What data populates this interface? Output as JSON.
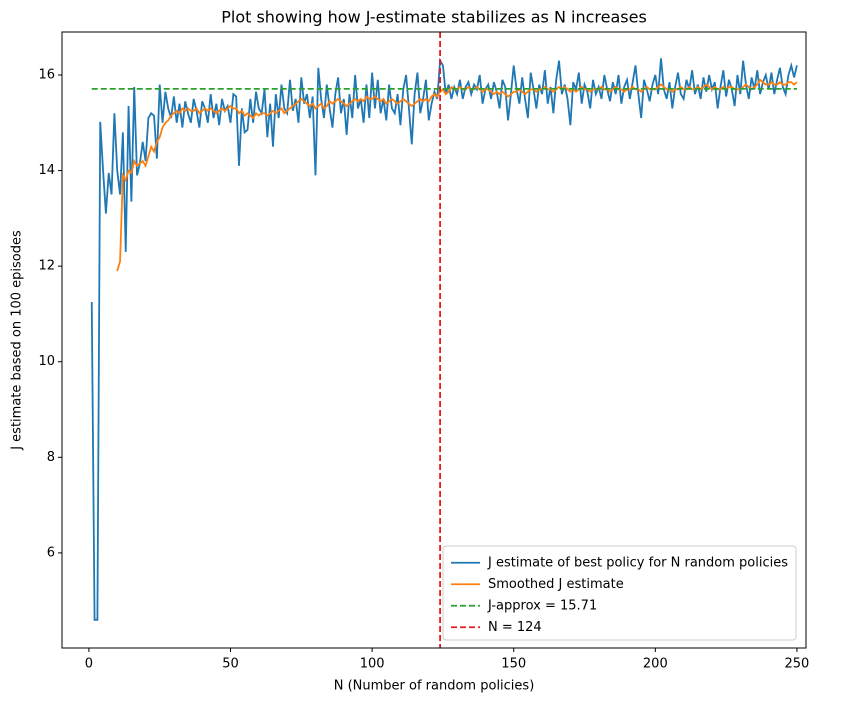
{
  "chart_data": {
    "type": "line",
    "title": "Plot showing how J-estimate stabilizes as N increases",
    "xlabel": "N (Number of random policies)",
    "ylabel": "J estimate based on 100 episodes",
    "x": [
      1,
      2,
      3,
      4,
      5,
      6,
      7,
      8,
      9,
      10,
      11,
      12,
      13,
      14,
      15,
      16,
      17,
      18,
      19,
      20,
      21,
      22,
      23,
      24,
      25,
      26,
      27,
      28,
      29,
      30,
      31,
      32,
      33,
      34,
      35,
      36,
      37,
      38,
      39,
      40,
      41,
      42,
      43,
      44,
      45,
      46,
      47,
      48,
      49,
      50,
      51,
      52,
      53,
      54,
      55,
      56,
      57,
      58,
      59,
      60,
      61,
      62,
      63,
      64,
      65,
      66,
      67,
      68,
      69,
      70,
      71,
      72,
      73,
      74,
      75,
      76,
      77,
      78,
      79,
      80,
      81,
      82,
      83,
      84,
      85,
      86,
      87,
      88,
      89,
      90,
      91,
      92,
      93,
      94,
      95,
      96,
      97,
      98,
      99,
      100,
      101,
      102,
      103,
      104,
      105,
      106,
      107,
      108,
      109,
      110,
      111,
      112,
      113,
      114,
      115,
      116,
      117,
      118,
      119,
      120,
      121,
      122,
      123,
      124,
      125,
      126,
      127,
      128,
      129,
      130,
      131,
      132,
      133,
      134,
      135,
      136,
      137,
      138,
      139,
      140,
      141,
      142,
      143,
      144,
      145,
      146,
      147,
      148,
      149,
      150,
      151,
      152,
      153,
      154,
      155,
      156,
      157,
      158,
      159,
      160,
      161,
      162,
      163,
      164,
      165,
      166,
      167,
      168,
      169,
      170,
      171,
      172,
      173,
      174,
      175,
      176,
      177,
      178,
      179,
      180,
      181,
      182,
      183,
      184,
      185,
      186,
      187,
      188,
      189,
      190,
      191,
      192,
      193,
      194,
      195,
      196,
      197,
      198,
      199,
      200,
      201,
      202,
      203,
      204,
      205,
      206,
      207,
      208,
      209,
      210,
      211,
      212,
      213,
      214,
      215,
      216,
      217,
      218,
      219,
      220,
      221,
      222,
      223,
      224,
      225,
      226,
      227,
      228,
      229,
      230,
      231,
      232,
      233,
      234,
      235,
      236,
      237,
      238,
      239,
      240,
      241,
      242,
      243,
      244,
      245,
      246,
      247,
      248,
      249,
      250
    ],
    "series": [
      {
        "name": "J estimate of best policy for N random policies",
        "color": "#1f77b4",
        "dash": "solid",
        "values": [
          11.25,
          4.6,
          4.6,
          15.02,
          14.0,
          13.1,
          13.95,
          13.5,
          15.2,
          14.0,
          13.5,
          14.8,
          12.3,
          15.35,
          13.35,
          15.75,
          13.9,
          14.15,
          14.6,
          14.2,
          15.1,
          15.2,
          15.15,
          14.25,
          15.8,
          15.0,
          15.65,
          15.3,
          15.1,
          15.55,
          15.0,
          15.4,
          14.9,
          15.45,
          15.2,
          15.0,
          15.5,
          15.25,
          14.9,
          15.45,
          15.3,
          15.0,
          15.6,
          15.1,
          15.4,
          14.95,
          15.5,
          15.25,
          15.35,
          15.0,
          15.6,
          15.55,
          14.1,
          15.3,
          14.8,
          14.85,
          15.5,
          15.0,
          15.65,
          15.3,
          15.2,
          15.7,
          14.7,
          15.4,
          14.5,
          15.6,
          15.1,
          15.8,
          15.3,
          15.2,
          15.9,
          15.25,
          15.5,
          15.0,
          15.95,
          15.4,
          15.6,
          15.1,
          15.55,
          13.9,
          16.15,
          15.5,
          15.1,
          15.8,
          15.3,
          14.9,
          15.6,
          15.95,
          15.2,
          15.5,
          14.75,
          15.6,
          15.1,
          16.0,
          15.3,
          15.5,
          15.0,
          15.8,
          15.1,
          16.05,
          15.3,
          15.9,
          15.2,
          15.5,
          15.05,
          15.8,
          15.3,
          15.2,
          15.6,
          14.95,
          15.7,
          16.0,
          15.3,
          14.55,
          15.6,
          16.05,
          15.2,
          15.5,
          15.9,
          15.05,
          15.4,
          15.65,
          15.5,
          16.3,
          16.2,
          15.6,
          15.8,
          15.5,
          15.75,
          15.6,
          15.9,
          15.5,
          15.75,
          15.85,
          15.6,
          15.8,
          15.7,
          16.0,
          15.4,
          15.7,
          15.8,
          15.5,
          15.85,
          15.65,
          15.3,
          15.9,
          15.75,
          15.05,
          15.6,
          16.2,
          15.7,
          15.4,
          15.95,
          15.5,
          15.1,
          16.05,
          15.7,
          15.3,
          15.8,
          15.6,
          16.1,
          15.4,
          15.75,
          15.2,
          15.9,
          16.3,
          15.6,
          15.8,
          15.5,
          14.95,
          15.85,
          15.7,
          16.05,
          15.4,
          15.8,
          15.65,
          15.3,
          15.9,
          15.6,
          15.75,
          15.5,
          16.0,
          15.7,
          15.45,
          15.85,
          15.6,
          16.0,
          15.4,
          15.75,
          15.9,
          15.5,
          15.85,
          16.2,
          15.6,
          15.1,
          15.9,
          15.7,
          15.45,
          15.8,
          16.0,
          15.6,
          16.35,
          15.7,
          15.5,
          15.85,
          15.3,
          15.75,
          16.05,
          15.6,
          15.5,
          15.9,
          15.7,
          16.1,
          15.6,
          15.8,
          15.5,
          15.95,
          15.65,
          16.0,
          15.7,
          15.85,
          15.3,
          15.75,
          16.1,
          15.55,
          15.9,
          15.7,
          15.35,
          16.0,
          15.6,
          16.3,
          15.8,
          15.5,
          15.95,
          15.7,
          16.1,
          15.6,
          15.85,
          16.0,
          15.7,
          16.05,
          15.6,
          15.9,
          16.15,
          15.75,
          15.6,
          16.0,
          16.2,
          15.95,
          16.2
        ]
      },
      {
        "name": "Smoothed J estimate",
        "color": "#ff7f0e",
        "dash": "solid",
        "values": [
          null,
          null,
          null,
          null,
          null,
          null,
          null,
          null,
          null,
          11.9,
          12.1,
          13.9,
          13.8,
          14.0,
          13.95,
          14.2,
          14.1,
          14.15,
          14.2,
          14.1,
          14.3,
          14.5,
          14.4,
          14.6,
          14.7,
          14.9,
          15.0,
          15.05,
          15.15,
          15.2,
          15.25,
          15.2,
          15.3,
          15.25,
          15.3,
          15.25,
          15.25,
          15.3,
          15.2,
          15.25,
          15.3,
          15.25,
          15.3,
          15.25,
          15.2,
          15.25,
          15.3,
          15.25,
          15.3,
          15.35,
          15.3,
          15.3,
          15.2,
          15.25,
          15.15,
          15.2,
          15.15,
          15.1,
          15.2,
          15.15,
          15.2,
          15.2,
          15.15,
          15.2,
          15.25,
          15.2,
          15.25,
          15.3,
          15.2,
          15.25,
          15.3,
          15.35,
          15.4,
          15.45,
          15.5,
          15.45,
          15.4,
          15.35,
          15.4,
          15.3,
          15.35,
          15.4,
          15.3,
          15.35,
          15.45,
          15.4,
          15.45,
          15.5,
          15.45,
          15.4,
          15.35,
          15.4,
          15.45,
          15.5,
          15.45,
          15.5,
          15.45,
          15.55,
          15.5,
          15.5,
          15.55,
          15.5,
          15.45,
          15.5,
          15.4,
          15.45,
          15.5,
          15.45,
          15.4,
          15.45,
          15.5,
          15.45,
          15.4,
          15.35,
          15.4,
          15.45,
          15.5,
          15.45,
          15.5,
          15.45,
          15.55,
          15.6,
          15.55,
          15.65,
          15.7,
          15.6,
          15.65,
          15.75,
          15.7,
          15.7,
          15.75,
          15.7,
          15.7,
          15.75,
          15.7,
          15.7,
          15.75,
          15.7,
          15.65,
          15.7,
          15.7,
          15.65,
          15.6,
          15.65,
          15.6,
          15.65,
          15.6,
          15.55,
          15.6,
          15.65,
          15.65,
          15.7,
          15.65,
          15.6,
          15.65,
          15.7,
          15.7,
          15.65,
          15.7,
          15.7,
          15.75,
          15.7,
          15.7,
          15.65,
          15.7,
          15.75,
          15.7,
          15.75,
          15.7,
          15.65,
          15.7,
          15.65,
          15.7,
          15.75,
          15.7,
          15.7,
          15.65,
          15.7,
          15.7,
          15.7,
          15.75,
          15.7,
          15.7,
          15.65,
          15.7,
          15.75,
          15.7,
          15.7,
          15.65,
          15.7,
          15.7,
          15.75,
          15.7,
          15.7,
          15.65,
          15.7,
          15.75,
          15.7,
          15.7,
          15.7,
          15.75,
          15.8,
          15.75,
          15.7,
          15.7,
          15.65,
          15.7,
          15.7,
          15.75,
          15.7,
          15.7,
          15.75,
          15.7,
          15.7,
          15.75,
          15.7,
          15.75,
          15.8,
          15.75,
          15.7,
          15.75,
          15.7,
          15.7,
          15.75,
          15.7,
          15.75,
          15.75,
          15.7,
          15.7,
          15.7,
          15.75,
          15.8,
          15.75,
          15.7,
          15.75,
          15.8,
          15.9,
          15.85,
          15.8,
          15.8,
          15.85,
          15.8,
          15.8,
          15.85,
          15.8,
          15.8,
          15.85,
          15.85,
          15.8,
          15.85
        ]
      }
    ],
    "reference_lines": [
      {
        "name": "J-approx = 15.71",
        "orientation": "horizontal",
        "value": 15.71,
        "span": [
          1,
          250
        ],
        "color": "#2ca02c",
        "dash": "dashed"
      },
      {
        "name": "N = 124",
        "orientation": "vertical",
        "value": 124,
        "color": "#e41a1c",
        "dash": "dashed"
      }
    ],
    "xlim": [
      -9.5,
      253.2
    ],
    "ylim": [
      4.01,
      16.9
    ],
    "xticks": [
      0,
      50,
      100,
      150,
      200,
      250
    ],
    "yticks": [
      6,
      8,
      10,
      12,
      14,
      16
    ],
    "grid": false,
    "legend": "lower right"
  }
}
